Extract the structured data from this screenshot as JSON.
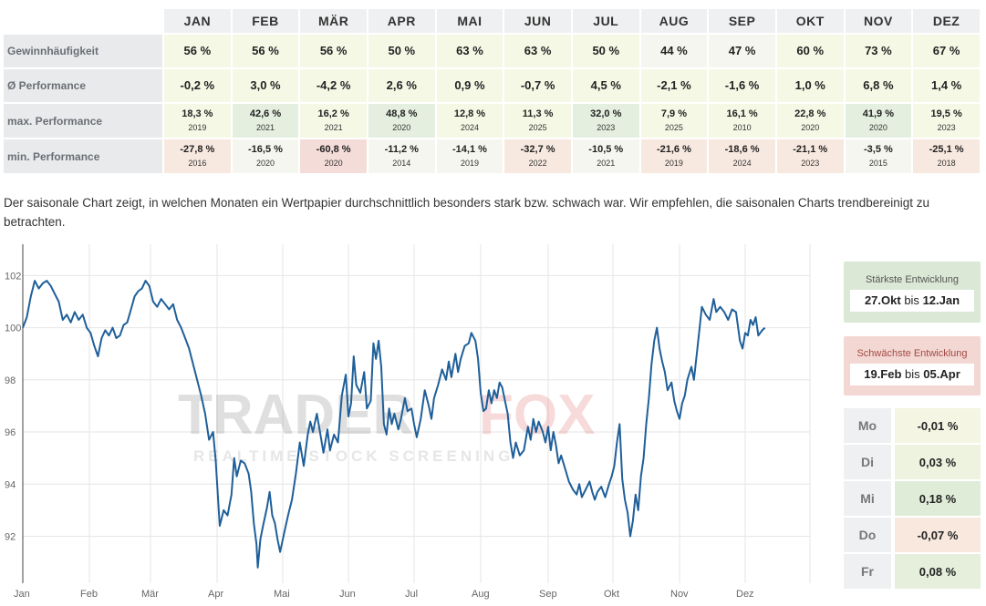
{
  "months": [
    "JAN",
    "FEB",
    "MÄR",
    "APR",
    "MAI",
    "JUN",
    "JUL",
    "AUG",
    "SEP",
    "OKT",
    "NOV",
    "DEZ"
  ],
  "rows": {
    "win_rate": {
      "label": "Gewinnhäufigkeit",
      "cells": [
        {
          "value": "56 %",
          "tone": "g1"
        },
        {
          "value": "56 %",
          "tone": "g1"
        },
        {
          "value": "56 %",
          "tone": "g1"
        },
        {
          "value": "50 %",
          "tone": "g1"
        },
        {
          "value": "63 %",
          "tone": "g1"
        },
        {
          "value": "63 %",
          "tone": "g1"
        },
        {
          "value": "50 %",
          "tone": "g1"
        },
        {
          "value": "44 %",
          "tone": "n0"
        },
        {
          "value": "47 %",
          "tone": "n0"
        },
        {
          "value": "60 %",
          "tone": "g1"
        },
        {
          "value": "73 %",
          "tone": "g1"
        },
        {
          "value": "67 %",
          "tone": "g1"
        }
      ]
    },
    "avg_performance": {
      "label": "Ø Performance",
      "cells": [
        {
          "value": "-0,2 %",
          "tone": "g1"
        },
        {
          "value": "3,0 %",
          "tone": "g1"
        },
        {
          "value": "-4,2 %",
          "tone": "g1"
        },
        {
          "value": "2,6 %",
          "tone": "g1"
        },
        {
          "value": "0,9 %",
          "tone": "g1"
        },
        {
          "value": "-0,7 %",
          "tone": "g1"
        },
        {
          "value": "4,5 %",
          "tone": "g1"
        },
        {
          "value": "-2,1 %",
          "tone": "g1"
        },
        {
          "value": "-1,6 %",
          "tone": "g1"
        },
        {
          "value": "1,0 %",
          "tone": "g1"
        },
        {
          "value": "6,8 %",
          "tone": "g1"
        },
        {
          "value": "1,4 %",
          "tone": "g1"
        }
      ]
    },
    "max_performance": {
      "label": "max. Performance",
      "cells": [
        {
          "value": "18,3 %",
          "year": "2019",
          "tone": "g1"
        },
        {
          "value": "42,6 %",
          "year": "2021",
          "tone": "g2"
        },
        {
          "value": "16,2 %",
          "year": "2021",
          "tone": "g1"
        },
        {
          "value": "48,8 %",
          "year": "2020",
          "tone": "g2"
        },
        {
          "value": "12,8 %",
          "year": "2024",
          "tone": "g1"
        },
        {
          "value": "11,3 %",
          "year": "2025",
          "tone": "g1"
        },
        {
          "value": "32,0 %",
          "year": "2023",
          "tone": "g2"
        },
        {
          "value": "7,9 %",
          "year": "2025",
          "tone": "g1"
        },
        {
          "value": "16,1 %",
          "year": "2010",
          "tone": "g1"
        },
        {
          "value": "22,8 %",
          "year": "2020",
          "tone": "g1"
        },
        {
          "value": "41,9 %",
          "year": "2020",
          "tone": "g2"
        },
        {
          "value": "19,5 %",
          "year": "2023",
          "tone": "g1"
        }
      ]
    },
    "min_performance": {
      "label": "min. Performance",
      "cells": [
        {
          "value": "-27,8 %",
          "year": "2016",
          "tone": "r1"
        },
        {
          "value": "-16,5 %",
          "year": "2020",
          "tone": "n0"
        },
        {
          "value": "-60,8 %",
          "year": "2020",
          "tone": "r2"
        },
        {
          "value": "-11,2 %",
          "year": "2014",
          "tone": "n0"
        },
        {
          "value": "-14,1 %",
          "year": "2019",
          "tone": "n0"
        },
        {
          "value": "-32,7 %",
          "year": "2022",
          "tone": "r1"
        },
        {
          "value": "-10,5 %",
          "year": "2021",
          "tone": "n0"
        },
        {
          "value": "-21,6 %",
          "year": "2019",
          "tone": "r1"
        },
        {
          "value": "-18,6 %",
          "year": "2024",
          "tone": "r1"
        },
        {
          "value": "-21,1 %",
          "year": "2023",
          "tone": "r1"
        },
        {
          "value": "-3,5 %",
          "year": "2015",
          "tone": "n0"
        },
        {
          "value": "-25,1 %",
          "year": "2018",
          "tone": "r1"
        }
      ]
    }
  },
  "description": "Der saisonale Chart zeigt, in welchen Monaten ein Wertpapier durchschnittlich besonders stark bzw. schwach war. Wir empfehlen, die saisonalen Charts trendbereinigt zu betrachten.",
  "watermark": {
    "brand_dark": "TRADER",
    "brand_light": "FOX",
    "tagline": "REALTIME STOCK SCREENING"
  },
  "chart_data": {
    "type": "line",
    "title": "",
    "xlabel": "",
    "ylabel": "",
    "month_ticks": [
      "Jan",
      "Feb",
      "Mär",
      "Apr",
      "Mai",
      "Jun",
      "Jul",
      "Aug",
      "Sep",
      "Okt",
      "Nov",
      "Dez"
    ],
    "y_ticks": [
      92,
      94,
      96,
      98,
      100,
      102
    ],
    "ylim": [
      90.2,
      103.2
    ],
    "xlim": [
      0,
      12
    ],
    "grid": true,
    "line_color": "#1f5f99",
    "series": [
      {
        "points": [
          [
            0.0,
            100.0
          ],
          [
            0.06,
            100.4
          ],
          [
            0.12,
            101.2
          ],
          [
            0.18,
            101.8
          ],
          [
            0.24,
            101.5
          ],
          [
            0.3,
            101.7
          ],
          [
            0.36,
            101.8
          ],
          [
            0.42,
            101.6
          ],
          [
            0.48,
            101.3
          ],
          [
            0.54,
            101.0
          ],
          [
            0.6,
            100.3
          ],
          [
            0.66,
            100.5
          ],
          [
            0.72,
            100.2
          ],
          [
            0.78,
            100.6
          ],
          [
            0.84,
            100.3
          ],
          [
            0.9,
            100.5
          ],
          [
            0.96,
            100.0
          ],
          [
            1.02,
            99.8
          ],
          [
            1.08,
            99.3
          ],
          [
            1.14,
            98.9
          ],
          [
            1.2,
            99.6
          ],
          [
            1.26,
            99.9
          ],
          [
            1.32,
            99.7
          ],
          [
            1.38,
            100.0
          ],
          [
            1.44,
            99.6
          ],
          [
            1.5,
            99.7
          ],
          [
            1.56,
            100.1
          ],
          [
            1.62,
            100.2
          ],
          [
            1.68,
            100.7
          ],
          [
            1.74,
            101.2
          ],
          [
            1.8,
            101.4
          ],
          [
            1.86,
            101.5
          ],
          [
            1.92,
            101.8
          ],
          [
            1.98,
            101.6
          ],
          [
            2.04,
            101.0
          ],
          [
            2.1,
            100.8
          ],
          [
            2.16,
            101.1
          ],
          [
            2.22,
            100.9
          ],
          [
            2.28,
            100.7
          ],
          [
            2.34,
            100.9
          ],
          [
            2.4,
            100.3
          ],
          [
            2.46,
            100.0
          ],
          [
            2.52,
            99.6
          ],
          [
            2.58,
            99.2
          ],
          [
            2.64,
            98.6
          ],
          [
            2.7,
            98.0
          ],
          [
            2.76,
            97.4
          ],
          [
            2.82,
            96.7
          ],
          [
            2.88,
            95.7
          ],
          [
            2.94,
            96.0
          ],
          [
            2.98,
            94.9
          ],
          [
            3.04,
            92.4
          ],
          [
            3.1,
            93.0
          ],
          [
            3.16,
            92.8
          ],
          [
            3.22,
            93.6
          ],
          [
            3.26,
            95.0
          ],
          [
            3.3,
            94.3
          ],
          [
            3.36,
            94.9
          ],
          [
            3.42,
            94.8
          ],
          [
            3.48,
            94.4
          ],
          [
            3.52,
            93.7
          ],
          [
            3.56,
            92.5
          ],
          [
            3.6,
            91.7
          ],
          [
            3.62,
            90.8
          ],
          [
            3.66,
            91.9
          ],
          [
            3.7,
            92.4
          ],
          [
            3.76,
            93.1
          ],
          [
            3.8,
            93.7
          ],
          [
            3.84,
            92.8
          ],
          [
            3.88,
            92.5
          ],
          [
            3.92,
            91.9
          ],
          [
            3.96,
            91.4
          ],
          [
            4.02,
            92.1
          ],
          [
            4.08,
            92.8
          ],
          [
            4.14,
            93.4
          ],
          [
            4.2,
            94.4
          ],
          [
            4.26,
            95.6
          ],
          [
            4.32,
            94.7
          ],
          [
            4.38,
            95.9
          ],
          [
            4.42,
            96.4
          ],
          [
            4.46,
            96.0
          ],
          [
            4.52,
            96.7
          ],
          [
            4.58,
            95.8
          ],
          [
            4.62,
            95.2
          ],
          [
            4.68,
            96.1
          ],
          [
            4.72,
            95.3
          ],
          [
            4.78,
            95.9
          ],
          [
            4.84,
            95.6
          ],
          [
            4.9,
            97.4
          ],
          [
            4.96,
            98.2
          ],
          [
            5.0,
            96.6
          ],
          [
            5.04,
            97.1
          ],
          [
            5.08,
            98.9
          ],
          [
            5.12,
            97.8
          ],
          [
            5.18,
            97.5
          ],
          [
            5.24,
            98.3
          ],
          [
            5.28,
            96.9
          ],
          [
            5.34,
            97.2
          ],
          [
            5.38,
            99.4
          ],
          [
            5.42,
            98.8
          ],
          [
            5.46,
            99.5
          ],
          [
            5.5,
            98.5
          ],
          [
            5.54,
            96.3
          ],
          [
            5.58,
            95.9
          ],
          [
            5.62,
            96.9
          ],
          [
            5.66,
            96.3
          ],
          [
            5.7,
            96.7
          ],
          [
            5.76,
            96.1
          ],
          [
            5.8,
            96.5
          ],
          [
            5.86,
            97.3
          ],
          [
            5.9,
            96.8
          ],
          [
            5.96,
            96.9
          ],
          [
            6.0,
            96.3
          ],
          [
            6.04,
            95.8
          ],
          [
            6.1,
            96.5
          ],
          [
            6.16,
            97.6
          ],
          [
            6.22,
            97.0
          ],
          [
            6.26,
            96.5
          ],
          [
            6.3,
            97.3
          ],
          [
            6.36,
            97.8
          ],
          [
            6.42,
            98.4
          ],
          [
            6.48,
            98.0
          ],
          [
            6.52,
            98.7
          ],
          [
            6.56,
            98.1
          ],
          [
            6.62,
            99.0
          ],
          [
            6.66,
            98.3
          ],
          [
            6.7,
            98.8
          ],
          [
            6.76,
            99.3
          ],
          [
            6.82,
            99.4
          ],
          [
            6.86,
            99.8
          ],
          [
            6.92,
            99.5
          ],
          [
            6.96,
            98.8
          ],
          [
            7.0,
            97.5
          ],
          [
            7.04,
            96.8
          ],
          [
            7.08,
            96.9
          ],
          [
            7.12,
            97.6
          ],
          [
            7.16,
            97.1
          ],
          [
            7.2,
            97.6
          ],
          [
            7.24,
            97.3
          ],
          [
            7.28,
            97.9
          ],
          [
            7.32,
            97.7
          ],
          [
            7.36,
            97.2
          ],
          [
            7.4,
            96.7
          ],
          [
            7.44,
            95.6
          ],
          [
            7.48,
            95.0
          ],
          [
            7.52,
            95.6
          ],
          [
            7.58,
            95.1
          ],
          [
            7.64,
            95.3
          ],
          [
            7.7,
            96.2
          ],
          [
            7.74,
            95.7
          ],
          [
            7.78,
            96.5
          ],
          [
            7.82,
            96.0
          ],
          [
            7.86,
            96.4
          ],
          [
            7.92,
            96.0
          ],
          [
            7.96,
            95.6
          ],
          [
            8.0,
            96.2
          ],
          [
            8.04,
            95.3
          ],
          [
            8.08,
            96.0
          ],
          [
            8.12,
            95.5
          ],
          [
            8.16,
            94.8
          ],
          [
            8.2,
            95.1
          ],
          [
            8.26,
            94.6
          ],
          [
            8.32,
            94.1
          ],
          [
            8.38,
            93.8
          ],
          [
            8.44,
            93.6
          ],
          [
            8.48,
            94.0
          ],
          [
            8.52,
            93.5
          ],
          [
            8.58,
            93.8
          ],
          [
            8.64,
            94.1
          ],
          [
            8.68,
            93.7
          ],
          [
            8.72,
            93.4
          ],
          [
            8.76,
            93.7
          ],
          [
            8.82,
            93.9
          ],
          [
            8.88,
            93.5
          ],
          [
            8.94,
            94.0
          ],
          [
            8.98,
            94.3
          ],
          [
            9.02,
            94.7
          ],
          [
            9.06,
            95.6
          ],
          [
            9.1,
            96.3
          ],
          [
            9.14,
            94.2
          ],
          [
            9.18,
            93.4
          ],
          [
            9.22,
            92.9
          ],
          [
            9.26,
            92.0
          ],
          [
            9.3,
            92.6
          ],
          [
            9.34,
            93.6
          ],
          [
            9.38,
            93.0
          ],
          [
            9.42,
            94.3
          ],
          [
            9.46,
            95.0
          ],
          [
            9.5,
            96.3
          ],
          [
            9.54,
            97.3
          ],
          [
            9.58,
            98.6
          ],
          [
            9.62,
            99.5
          ],
          [
            9.66,
            100.0
          ],
          [
            9.7,
            99.2
          ],
          [
            9.74,
            98.7
          ],
          [
            9.78,
            98.3
          ],
          [
            9.82,
            97.6
          ],
          [
            9.88,
            97.9
          ],
          [
            9.92,
            97.2
          ],
          [
            9.96,
            96.8
          ],
          [
            10.0,
            96.5
          ],
          [
            10.04,
            97.1
          ],
          [
            10.08,
            97.4
          ],
          [
            10.12,
            98.0
          ],
          [
            10.18,
            98.5
          ],
          [
            10.22,
            98.0
          ],
          [
            10.28,
            99.4
          ],
          [
            10.34,
            100.8
          ],
          [
            10.4,
            100.5
          ],
          [
            10.46,
            100.3
          ],
          [
            10.52,
            101.1
          ],
          [
            10.56,
            100.6
          ],
          [
            10.62,
            100.8
          ],
          [
            10.68,
            100.6
          ],
          [
            10.74,
            100.3
          ],
          [
            10.8,
            100.7
          ],
          [
            10.86,
            100.6
          ],
          [
            10.92,
            99.5
          ],
          [
            10.96,
            99.2
          ],
          [
            11.0,
            99.8
          ],
          [
            11.04,
            99.7
          ],
          [
            11.08,
            100.3
          ],
          [
            11.12,
            100.1
          ],
          [
            11.16,
            100.4
          ],
          [
            11.2,
            99.7
          ],
          [
            11.26,
            99.9
          ],
          [
            11.3,
            100.0
          ]
        ]
      }
    ]
  },
  "strongest": {
    "title": "Stärkste Entwicklung",
    "from": "27.Okt",
    "sep": "bis",
    "to": "12.Jan"
  },
  "weakest": {
    "title": "Schwächste Entwicklung",
    "from": "19.Feb",
    "sep": "bis",
    "to": "05.Apr"
  },
  "weekdays": [
    {
      "day": "Mo",
      "value": "-0,01 %",
      "tone": "#f4f5e3"
    },
    {
      "day": "Di",
      "value": "0,03 %",
      "tone": "#eef3df"
    },
    {
      "day": "Mi",
      "value": "0,18 %",
      "tone": "#dfecd8"
    },
    {
      "day": "Do",
      "value": "-0,07 %",
      "tone": "#f8e8dd"
    },
    {
      "day": "Fr",
      "value": "0,08 %",
      "tone": "#e6efdc"
    }
  ]
}
